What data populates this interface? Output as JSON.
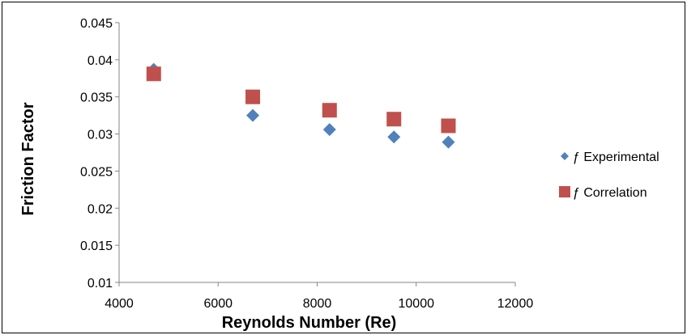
{
  "chart_data": {
    "type": "scatter",
    "title": "",
    "xlabel": "Reynolds Number (Re)",
    "ylabel": "Friction Factor",
    "xlim": [
      4000,
      12000
    ],
    "ylim": [
      0.01,
      0.045
    ],
    "xticks": [
      4000,
      6000,
      8000,
      10000,
      12000
    ],
    "xtick_labels": [
      "4000",
      "6000",
      "8000",
      "10000",
      "12000"
    ],
    "yticks": [
      0.01,
      0.015,
      0.02,
      0.025,
      0.03,
      0.035,
      0.04,
      0.045
    ],
    "ytick_labels": [
      "0.01",
      "0.015",
      "0.02",
      "0.025",
      "0.03",
      "0.035",
      "0.04",
      "0.045"
    ],
    "grid": false,
    "legend_position": "right",
    "series": [
      {
        "name": "ƒ Experimental",
        "marker": "diamond",
        "color": "#4F81BD",
        "points": [
          {
            "x": 4700,
            "y": 0.0387
          },
          {
            "x": 6700,
            "y": 0.0325
          },
          {
            "x": 8250,
            "y": 0.0306
          },
          {
            "x": 9550,
            "y": 0.0296
          },
          {
            "x": 10650,
            "y": 0.0289
          }
        ]
      },
      {
        "name": "ƒ Correlation",
        "marker": "square",
        "color": "#C0504D",
        "points": [
          {
            "x": 4700,
            "y": 0.0381
          },
          {
            "x": 6700,
            "y": 0.035
          },
          {
            "x": 8250,
            "y": 0.0332
          },
          {
            "x": 9550,
            "y": 0.032
          },
          {
            "x": 10650,
            "y": 0.0311
          }
        ]
      }
    ]
  }
}
